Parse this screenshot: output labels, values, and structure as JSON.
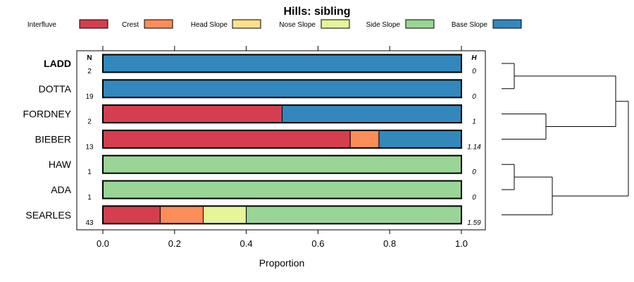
{
  "chart_data": {
    "type": "bar",
    "orientation": "horizontal",
    "stacked": true,
    "title": "Hills: sibling",
    "xlabel": "Proportion",
    "ylabel": "",
    "xlim": [
      0,
      1
    ],
    "x_ticks": [
      "0.0",
      "0.2",
      "0.4",
      "0.6",
      "0.8",
      "1.0"
    ],
    "n_header": "N",
    "h_header": "H",
    "legend_placement": "top",
    "grid": false,
    "series": [
      {
        "name": "Interfluve",
        "color": "#d53e4f"
      },
      {
        "name": "Crest",
        "color": "#fc8d59"
      },
      {
        "name": "Head Slope",
        "color": "#fee08b"
      },
      {
        "name": "Nose Slope",
        "color": "#e6f598"
      },
      {
        "name": "Side Slope",
        "color": "#99d594"
      },
      {
        "name": "Base Slope",
        "color": "#3288bd"
      }
    ],
    "categories": [
      {
        "label": "LADD",
        "bold": true,
        "n": "2",
        "h": "0",
        "values": [
          0,
          0,
          0,
          0,
          0,
          1.0
        ]
      },
      {
        "label": "DOTTA",
        "bold": false,
        "n": "19",
        "h": "0",
        "values": [
          0,
          0,
          0,
          0,
          0,
          1.0
        ]
      },
      {
        "label": "FORDNEY",
        "bold": false,
        "n": "2",
        "h": "1",
        "values": [
          0.5,
          0,
          0,
          0,
          0,
          0.5
        ]
      },
      {
        "label": "BIEBER",
        "bold": false,
        "n": "13",
        "h": "1.14",
        "values": [
          0.69,
          0.08,
          0,
          0,
          0,
          0.23
        ]
      },
      {
        "label": "HAW",
        "bold": false,
        "n": "1",
        "h": "0",
        "values": [
          0,
          0,
          0,
          0,
          1.0,
          0
        ]
      },
      {
        "label": "ADA",
        "bold": false,
        "n": "1",
        "h": "0",
        "values": [
          0,
          0,
          0,
          0,
          1.0,
          0
        ]
      },
      {
        "label": "SEARLES",
        "bold": false,
        "n": "43",
        "h": "1.59",
        "values": [
          0.16,
          0.12,
          0,
          0.12,
          0.6,
          0
        ]
      }
    ],
    "dendrogram": {
      "merges": [
        {
          "a": 0,
          "b": 1,
          "height": 0.1
        },
        {
          "a": 4,
          "b": 5,
          "height": 0.1
        },
        {
          "a": 2,
          "b": 3,
          "height": 0.35
        },
        {
          "a": 6,
          "b": "m1",
          "height": 0.4
        },
        {
          "a": "m0",
          "b": "m2",
          "height": 0.9
        },
        {
          "a": "m4",
          "b": "m3",
          "height": 1.0
        }
      ]
    }
  }
}
